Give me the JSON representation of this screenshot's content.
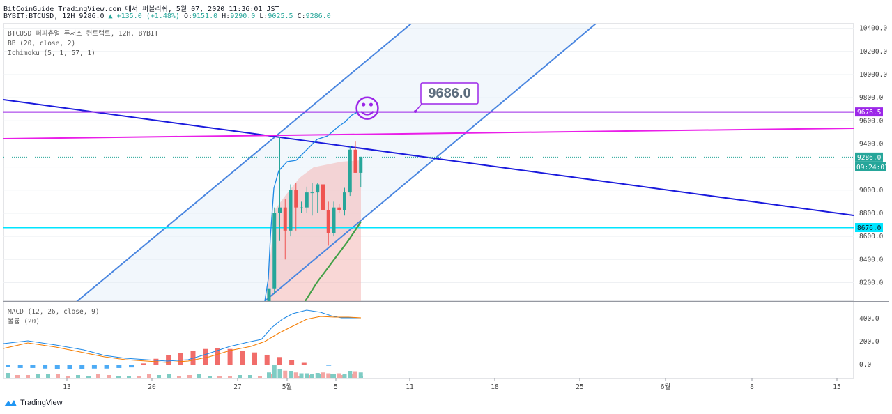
{
  "header": {
    "line1": "BitCoinGuide TradingView.com 에서 퍼블리쉬, 5월 07, 2020 11:36:01 JST",
    "symbol": "BYBIT:BTCUSD, 12H",
    "last": "9286.0",
    "change": "▲ +135.0 (+1.48%)",
    "o_label": "O:",
    "o": "9151.0",
    "h_label": "H:",
    "h": "9290.0",
    "l_label": "L:",
    "l": "9025.5",
    "c_label": "C:",
    "c": "9286.0"
  },
  "legend": {
    "title": "BTCUSD 퍼피츄얼 퓨처스 컨트랙트, 12H, BYBIT",
    "bb": "BB (20, close, 2)",
    "ichimoku": "Ichimoku (5, 1, 57, 1)",
    "macd": "MACD (12, 26, close, 9)",
    "volume": "볼륨 (20)"
  },
  "annotation": {
    "text": "9686.0",
    "smiley": "☺"
  },
  "price_tags": {
    "level_high": "9676.5",
    "current": "9286.0",
    "countdown": "09:24:01",
    "level_low": "8676.0"
  },
  "x_ticks": [
    "13",
    "20",
    "27",
    "5월",
    "5",
    "11",
    "18",
    "25",
    "6월",
    "8",
    "15"
  ],
  "colors": {
    "up": "#26a69a",
    "down": "#ef5350",
    "purple": "#9c27e8",
    "magenta": "#e91ee8",
    "cyan": "#00e5ff",
    "navy": "#1a1adc",
    "channel": "#4a86e0"
  },
  "footer": {
    "brand": "TradingView"
  },
  "chart_data": {
    "type": "candlestick",
    "price_axis": {
      "min": 8040,
      "max": 10440,
      "ticks": [
        10400,
        10200,
        10000,
        9800,
        9600,
        9400,
        9200,
        9000,
        8800,
        8600,
        8400,
        8200
      ]
    },
    "macd_axis": {
      "ticks": [
        400.0,
        200.0,
        0.0
      ]
    },
    "candles": [
      {
        "o": 7700,
        "h": 8150,
        "l": 7650,
        "c": 8150
      },
      {
        "o": 8150,
        "h": 8850,
        "l": 8100,
        "c": 8800
      },
      {
        "o": 8800,
        "h": 9460,
        "l": 8560,
        "c": 8850
      },
      {
        "o": 8850,
        "h": 8920,
        "l": 8400,
        "c": 8650
      },
      {
        "o": 8650,
        "h": 9050,
        "l": 8600,
        "c": 9000
      },
      {
        "o": 9000,
        "h": 9060,
        "l": 8650,
        "c": 8850
      },
      {
        "o": 8850,
        "h": 8900,
        "l": 8800,
        "c": 8850
      },
      {
        "o": 8850,
        "h": 9030,
        "l": 8800,
        "c": 8980
      },
      {
        "o": 8980,
        "h": 9060,
        "l": 8780,
        "c": 8980
      },
      {
        "o": 8980,
        "h": 9060,
        "l": 8800,
        "c": 9050
      },
      {
        "o": 9050,
        "h": 9060,
        "l": 8750,
        "c": 8830
      },
      {
        "o": 8830,
        "h": 8900,
        "l": 8520,
        "c": 8630
      },
      {
        "o": 8630,
        "h": 8900,
        "l": 8600,
        "c": 8850
      },
      {
        "o": 8850,
        "h": 8880,
        "l": 8800,
        "c": 8830
      },
      {
        "o": 8830,
        "h": 9020,
        "l": 8780,
        "c": 8980
      },
      {
        "o": 8980,
        "h": 9380,
        "l": 8950,
        "c": 9350
      },
      {
        "o": 9350,
        "h": 9420,
        "l": 9150,
        "c": 9150
      },
      {
        "o": 9150,
        "h": 9290,
        "l": 9025.5,
        "c": 9286
      }
    ],
    "lines": {
      "level_high": 9676.5,
      "level_low": 8676.0,
      "annotation_value": 9686.0
    },
    "volume": [
      35,
      80,
      55,
      45,
      40,
      35,
      30,
      30,
      28,
      32,
      35,
      30,
      28,
      30,
      28,
      40,
      38,
      35
    ],
    "macd_hist": [
      -20,
      -30,
      -30,
      -35,
      -40,
      -40,
      -40,
      -35,
      -35,
      -30,
      -25,
      10,
      50,
      80,
      100,
      120,
      135,
      140,
      135,
      120,
      105,
      85,
      65,
      40,
      15,
      -5,
      -10,
      -5,
      0
    ]
  }
}
